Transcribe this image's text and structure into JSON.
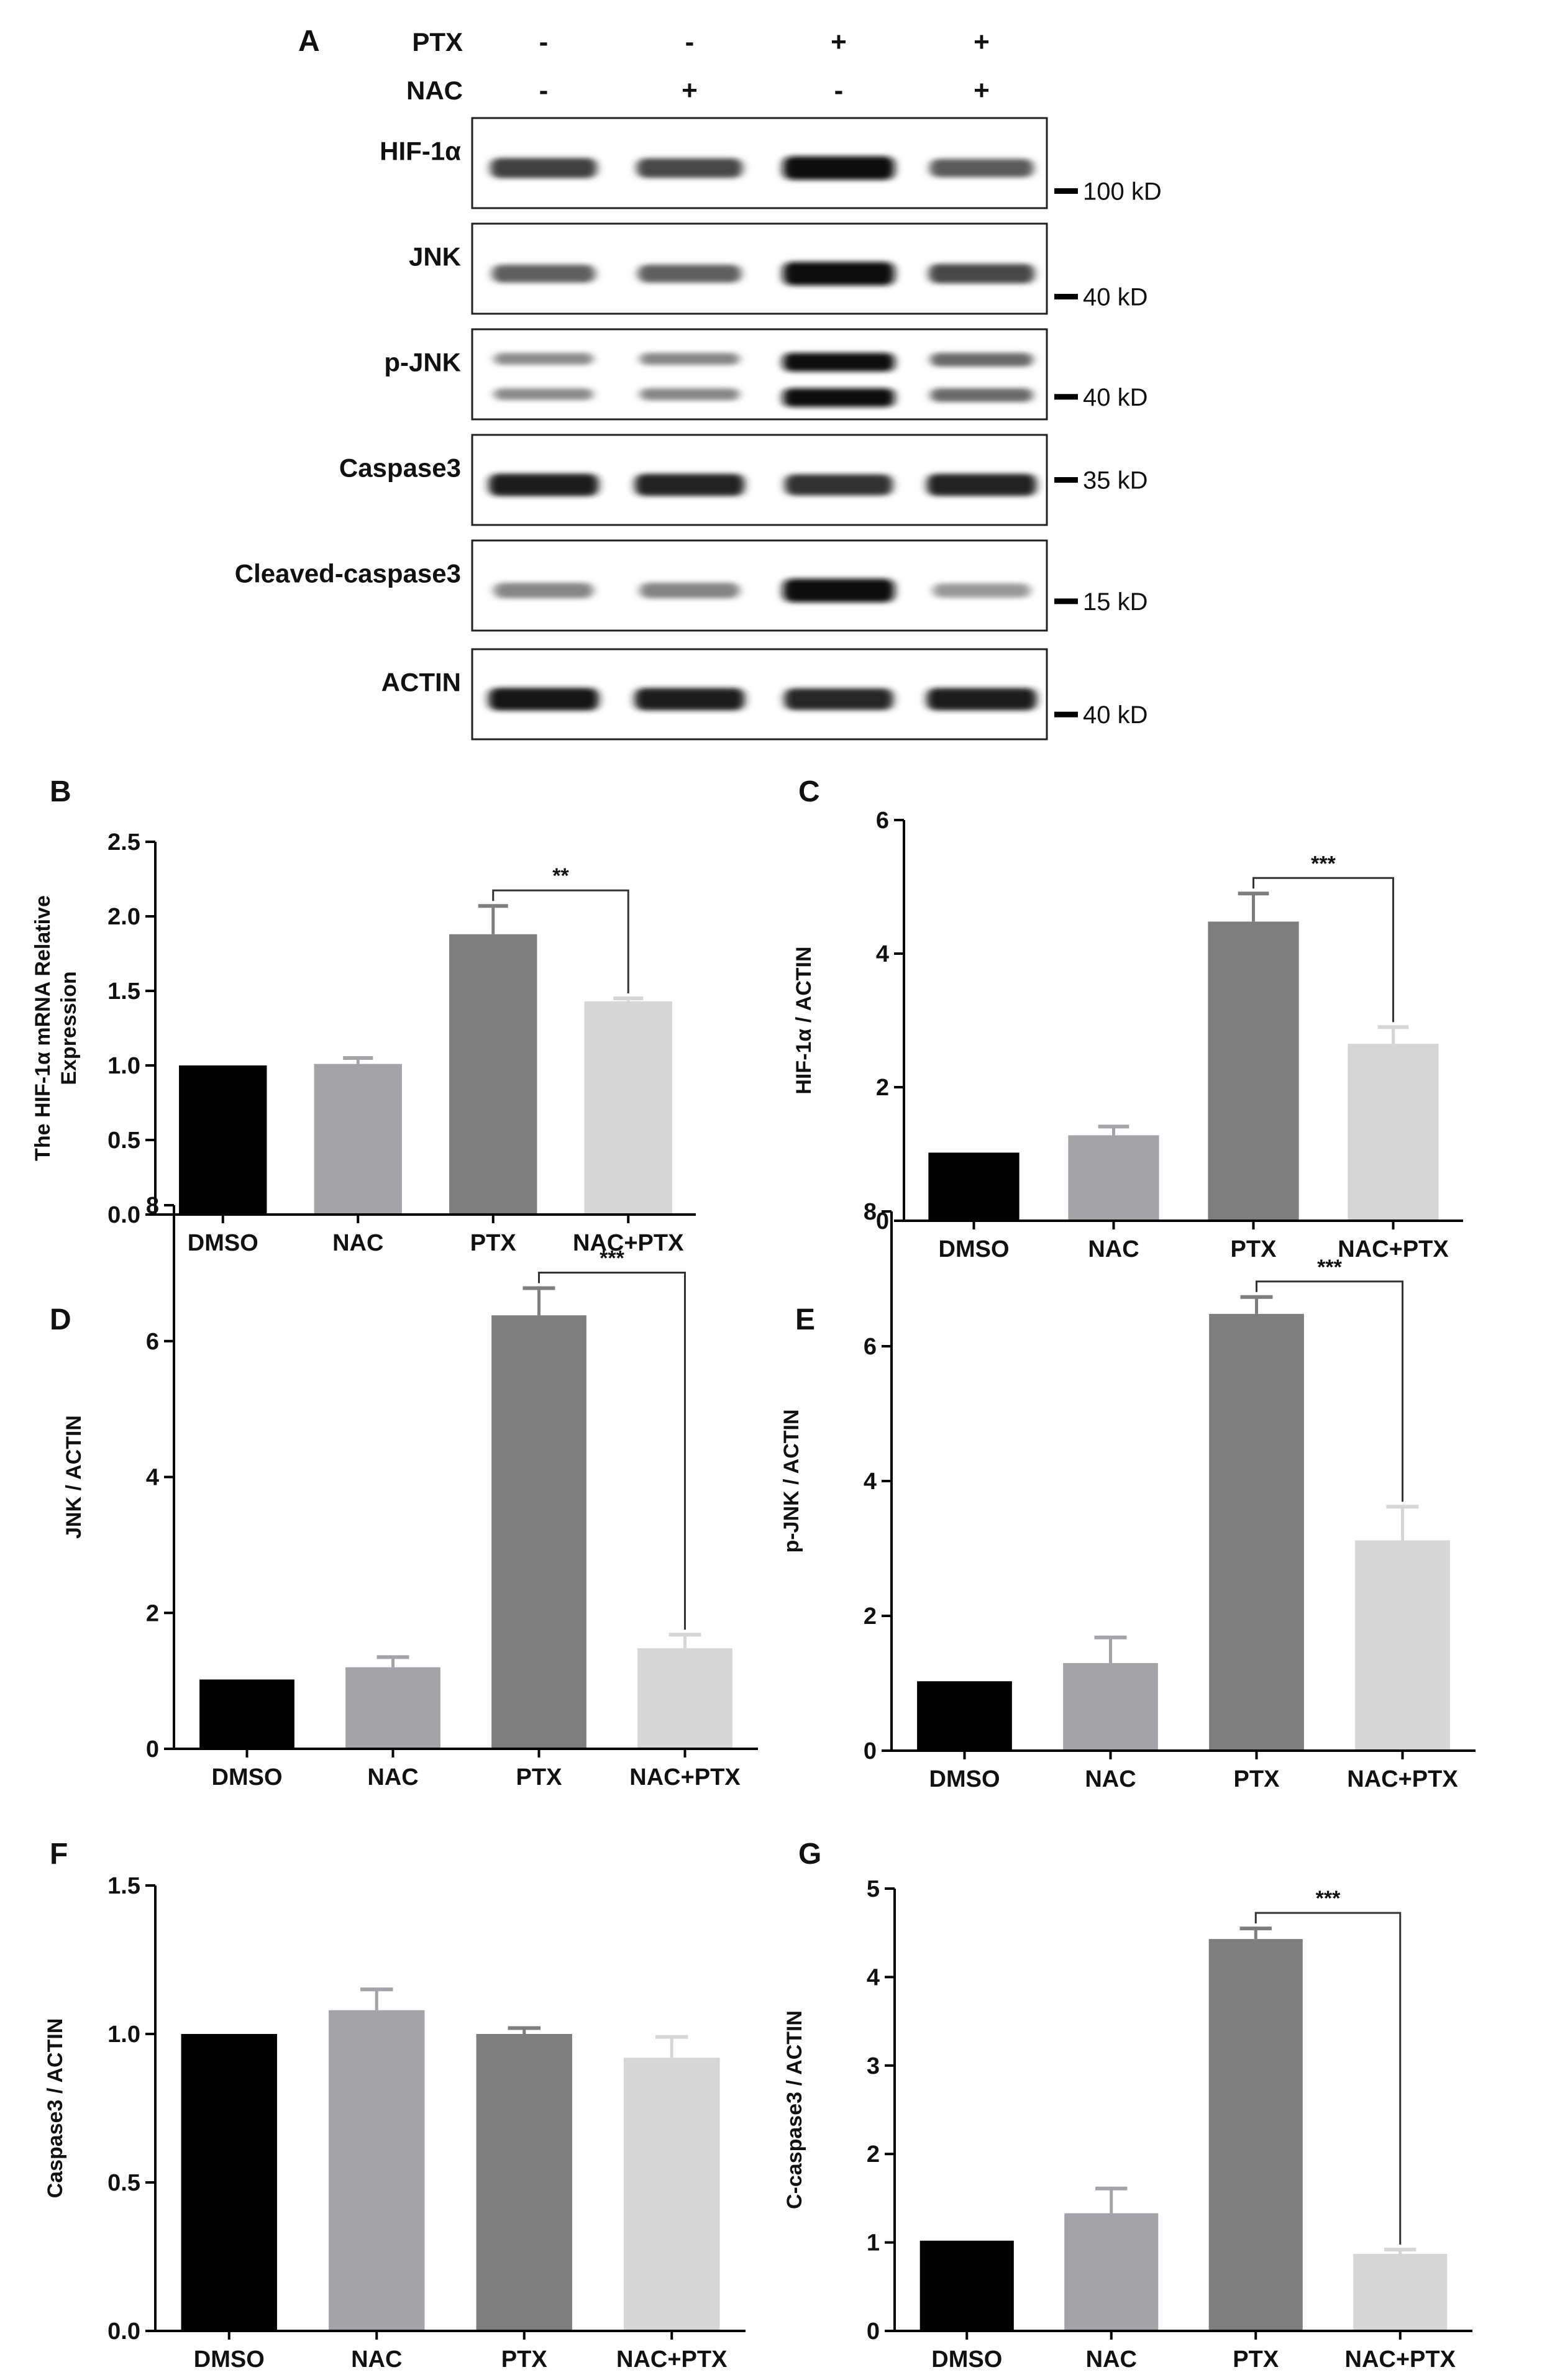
{
  "western_blot": {
    "panel_label": "A",
    "treatments": [
      {
        "name": "PTX",
        "signs": [
          "-",
          "-",
          "+",
          "+"
        ]
      },
      {
        "name": "NAC",
        "signs": [
          "-",
          "+",
          "-",
          "+"
        ]
      }
    ],
    "blots": [
      {
        "name": "HIF-1α",
        "marker": "100 kD",
        "band_intensity": [
          0.72,
          0.68,
          1.0,
          0.58
        ],
        "double": false
      },
      {
        "name": "JNK",
        "marker": "40 kD",
        "band_intensity": [
          0.55,
          0.55,
          1.0,
          0.68
        ],
        "double": false
      },
      {
        "name": "p-JNK",
        "marker": "40 kD",
        "band_intensity": [
          0.32,
          0.34,
          1.0,
          0.5
        ],
        "double": true
      },
      {
        "name": "Caspase3",
        "marker": "35 kD",
        "band_intensity": [
          0.9,
          0.88,
          0.8,
          0.88
        ],
        "double": false
      },
      {
        "name": "Cleaved-caspase3",
        "marker": "15 kD",
        "band_intensity": [
          0.35,
          0.36,
          1.0,
          0.25
        ],
        "double": false
      },
      {
        "name": "ACTIN",
        "marker": "40 kD",
        "band_intensity": [
          0.92,
          0.9,
          0.85,
          0.9
        ],
        "double": false
      }
    ]
  },
  "colors": {
    "DMSO": "#000000",
    "NAC": "#a3a3a8",
    "PTX": "#7e7e7e",
    "NAC+PTX": "#d6d6d6"
  },
  "chart_data": [
    {
      "type": "bar",
      "panel_label": "B",
      "categories": [
        "DMSO",
        "NAC",
        "PTX",
        "NAC+PTX"
      ],
      "values": [
        1.0,
        1.01,
        1.88,
        1.43
      ],
      "errors": [
        0,
        0.04,
        0.19,
        0.02
      ],
      "ylabel_lines": [
        "The HIF-1α mRNA Relative",
        "Expression"
      ],
      "ylim": [
        0,
        2.5
      ],
      "yticks": [
        "0.0",
        "0.5",
        "1.0",
        "1.5",
        "2.0",
        "2.5"
      ],
      "significance": {
        "from": 2,
        "to": 3,
        "label": "**"
      }
    },
    {
      "type": "bar",
      "panel_label": "C",
      "categories": [
        "DMSO",
        "NAC",
        "PTX",
        "NAC+PTX"
      ],
      "values": [
        1.02,
        1.28,
        4.48,
        2.65
      ],
      "errors": [
        0,
        0.13,
        0.42,
        0.25
      ],
      "ylabel_lines": [
        "HIF-1α / ACTIN"
      ],
      "ylim": [
        0,
        6
      ],
      "yticks": [
        "0",
        "2",
        "4",
        "6"
      ],
      "significance": {
        "from": 2,
        "to": 3,
        "label": "***"
      }
    },
    {
      "type": "bar",
      "panel_label": "D",
      "categories": [
        "DMSO",
        "NAC",
        "PTX",
        "NAC+PTX"
      ],
      "values": [
        1.02,
        1.2,
        6.38,
        1.48
      ],
      "errors": [
        0,
        0.15,
        0.4,
        0.2
      ],
      "ylabel_lines": [
        "JNK / ACTIN"
      ],
      "ylim": [
        0,
        8
      ],
      "yticks": [
        "0",
        "2",
        "4",
        "6",
        "8"
      ],
      "significance": {
        "from": 2,
        "to": 3,
        "label": "***"
      }
    },
    {
      "type": "bar",
      "panel_label": "E",
      "categories": [
        "DMSO",
        "NAC",
        "PTX",
        "NAC+PTX"
      ],
      "values": [
        1.03,
        1.3,
        6.48,
        3.12
      ],
      "errors": [
        0,
        0.38,
        0.25,
        0.5
      ],
      "ylabel_lines": [
        "p-JNK / ACTIN"
      ],
      "ylim": [
        0,
        8
      ],
      "yticks": [
        "0",
        "2",
        "4",
        "6",
        "8"
      ],
      "significance": {
        "from": 2,
        "to": 3,
        "label": "***"
      }
    },
    {
      "type": "bar",
      "panel_label": "F",
      "categories": [
        "DMSO",
        "NAC",
        "PTX",
        "NAC+PTX"
      ],
      "values": [
        1.0,
        1.08,
        1.0,
        0.92
      ],
      "errors": [
        0,
        0.07,
        0.02,
        0.07
      ],
      "ylabel_lines": [
        "Caspase3 / ACTIN"
      ],
      "ylim": [
        0,
        1.5
      ],
      "yticks": [
        "0.0",
        "0.5",
        "1.0",
        "1.5"
      ],
      "significance": null
    },
    {
      "type": "bar",
      "panel_label": "G",
      "categories": [
        "DMSO",
        "NAC",
        "PTX",
        "NAC+PTX"
      ],
      "values": [
        1.02,
        1.33,
        4.43,
        0.87
      ],
      "errors": [
        0,
        0.28,
        0.12,
        0.05
      ],
      "ylabel_lines": [
        "C-caspase3 / ACTIN"
      ],
      "ylim": [
        0,
        5
      ],
      "yticks": [
        "0",
        "1",
        "2",
        "3",
        "4",
        "5"
      ],
      "significance": {
        "from": 2,
        "to": 3,
        "label": "***"
      }
    }
  ]
}
